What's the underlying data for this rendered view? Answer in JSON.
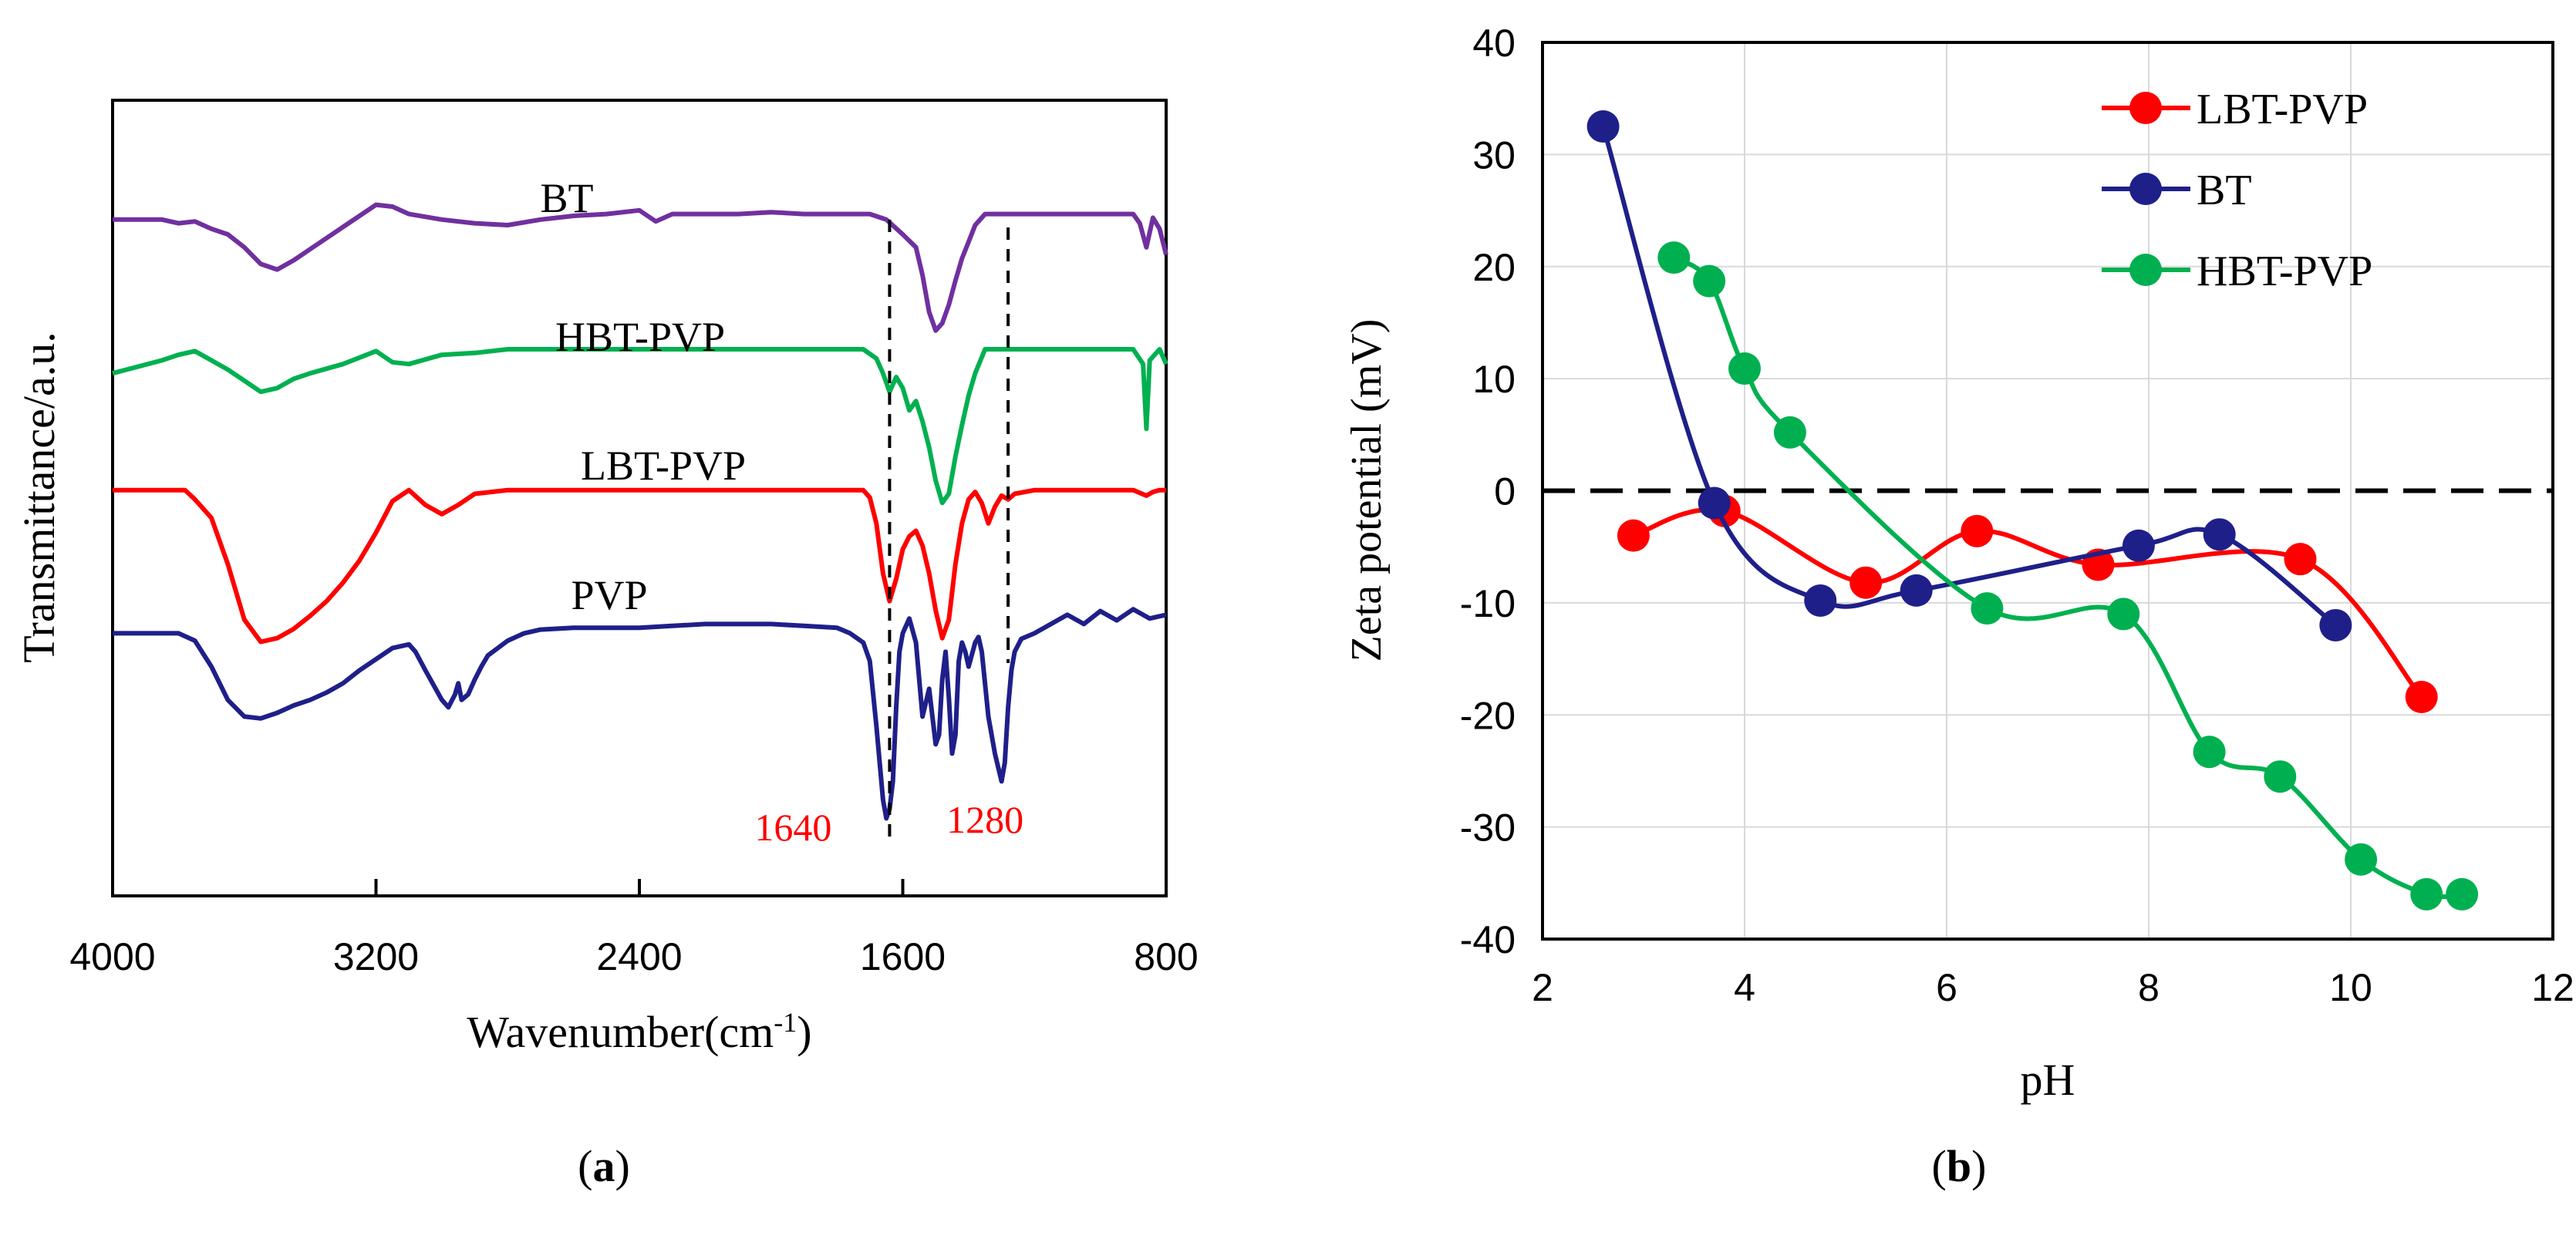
{
  "chart_data": [
    {
      "id": "a",
      "type": "line",
      "panel_label": "a",
      "xlabel": "Wavenumber(cm",
      "xlabel_sup": "-1",
      "xlabel_suffix": ")",
      "ylabel": "Transmittance/a.u.",
      "xlim": [
        4000,
        800
      ],
      "x_ticks": [
        4000,
        3200,
        2400,
        1600,
        800
      ],
      "x_tick_labels": [
        "4000",
        "3200",
        "2400",
        "1600",
        "800"
      ],
      "y_ticks": [],
      "series": [
        {
          "name": "BT",
          "color": "#7030a0",
          "offset": 0.15,
          "x": [
            4000,
            3850,
            3800,
            3750,
            3700,
            3650,
            3600,
            3550,
            3500,
            3450,
            3400,
            3300,
            3200,
            3150,
            3100,
            3000,
            2900,
            2800,
            2700,
            2600,
            2500,
            2400,
            2350,
            2300,
            2200,
            2100,
            2000,
            1900,
            1800,
            1700,
            1650,
            1600,
            1560,
            1540,
            1520,
            1500,
            1480,
            1460,
            1440,
            1420,
            1400,
            1380,
            1350,
            1300,
            1250,
            1200,
            1100,
            1000,
            950,
            900,
            880,
            860,
            840,
            820,
            800
          ],
          "y": [
            0,
            0,
            0.2,
            0.1,
            0.5,
            0.8,
            1.5,
            2.4,
            2.7,
            2.2,
            1.6,
            0.4,
            -0.8,
            -0.7,
            -0.3,
            0,
            0.2,
            0.3,
            0,
            -0.2,
            -0.3,
            -0.5,
            0.1,
            -0.3,
            -0.3,
            -0.3,
            -0.4,
            -0.3,
            -0.3,
            -0.3,
            0,
            0.8,
            1.5,
            3.0,
            5.0,
            6.0,
            5.6,
            4.6,
            3.3,
            2.1,
            1.2,
            0.3,
            -0.3,
            -0.3,
            -0.3,
            -0.3,
            -0.3,
            -0.3,
            -0.3,
            -0.3,
            0.2,
            1.5,
            -0.1,
            0.5,
            1.9
          ]
        },
        {
          "name": "HBT-PVP",
          "color": "#00b050",
          "offset": 0.32,
          "x": [
            4000,
            3850,
            3800,
            3750,
            3700,
            3650,
            3600,
            3550,
            3500,
            3450,
            3400,
            3300,
            3200,
            3150,
            3100,
            3000,
            2900,
            2800,
            2700,
            2600,
            2500,
            2400,
            2300,
            2200,
            2100,
            2000,
            1900,
            1800,
            1720,
            1680,
            1660,
            1640,
            1620,
            1600,
            1580,
            1560,
            1540,
            1520,
            1500,
            1480,
            1460,
            1440,
            1420,
            1400,
            1380,
            1350,
            1300,
            1250,
            1200,
            1100,
            1000,
            950,
            900,
            870,
            860,
            850,
            820,
            800
          ],
          "y": [
            1.0,
            0.3,
            0,
            -0.2,
            0.3,
            0.8,
            1.4,
            2.0,
            1.8,
            1.3,
            1.0,
            0.5,
            -0.2,
            0.4,
            0.5,
            0,
            -0.1,
            -0.3,
            -0.3,
            -0.3,
            -0.3,
            -0.3,
            -0.3,
            -0.3,
            -0.3,
            -0.3,
            -0.3,
            -0.3,
            -0.3,
            0.2,
            1.0,
            2.0,
            1.2,
            1.8,
            3.0,
            2.5,
            3.6,
            5.0,
            6.8,
            8.0,
            7.5,
            5.5,
            3.8,
            2.2,
            1.0,
            -0.3,
            -0.3,
            -0.3,
            -0.3,
            -0.3,
            -0.3,
            -0.3,
            -0.3,
            0.5,
            4.0,
            0.3,
            -0.3,
            0.5
          ]
        },
        {
          "name": "LBT-PVP",
          "color": "#ff0000",
          "offset": 0.49,
          "x": [
            4000,
            3900,
            3800,
            3780,
            3750,
            3700,
            3650,
            3600,
            3550,
            3500,
            3450,
            3400,
            3350,
            3300,
            3250,
            3200,
            3150,
            3100,
            3050,
            3000,
            2950,
            2900,
            2800,
            2700,
            2600,
            2500,
            2400,
            2300,
            2200,
            2100,
            2000,
            1900,
            1800,
            1720,
            1700,
            1680,
            1660,
            1640,
            1620,
            1600,
            1580,
            1560,
            1540,
            1520,
            1500,
            1480,
            1460,
            1440,
            1420,
            1400,
            1380,
            1360,
            1340,
            1320,
            1300,
            1280,
            1260,
            1200,
            1100,
            1000,
            950,
            900,
            860,
            840,
            820,
            800
          ],
          "y": [
            0,
            0,
            0,
            0,
            0.5,
            1.5,
            4.0,
            7.0,
            8.2,
            8.0,
            7.5,
            6.8,
            6.0,
            5.0,
            3.8,
            2.3,
            0.6,
            0,
            0.8,
            1.3,
            0.8,
            0.2,
            0,
            0,
            0,
            0,
            0,
            0,
            0,
            0,
            0,
            0,
            0,
            0,
            0.4,
            1.8,
            4.5,
            6.0,
            4.8,
            3.2,
            2.5,
            2.2,
            3.0,
            4.5,
            6.5,
            8.0,
            7.0,
            4.0,
            1.8,
            0.5,
            0.1,
            0.7,
            1.8,
            0.9,
            0.3,
            0.5,
            0.2,
            0,
            0,
            0,
            0,
            0,
            0.3,
            0.1,
            0,
            0
          ]
        },
        {
          "name": "PVP",
          "color": "#1f1f8a",
          "offset": 0.67,
          "x": [
            4000,
            3900,
            3800,
            3750,
            3700,
            3650,
            3600,
            3550,
            3500,
            3450,
            3400,
            3350,
            3300,
            3250,
            3200,
            3150,
            3100,
            3080,
            3050,
            3000,
            2980,
            2960,
            2950,
            2940,
            2920,
            2900,
            2880,
            2860,
            2830,
            2800,
            2750,
            2700,
            2600,
            2500,
            2400,
            2300,
            2200,
            2100,
            2000,
            1900,
            1800,
            1760,
            1720,
            1700,
            1680,
            1660,
            1650,
            1640,
            1630,
            1620,
            1610,
            1600,
            1580,
            1560,
            1540,
            1520,
            1500,
            1490,
            1480,
            1470,
            1460,
            1450,
            1440,
            1430,
            1420,
            1410,
            1400,
            1380,
            1370,
            1360,
            1340,
            1320,
            1300,
            1290,
            1280,
            1270,
            1260,
            1240,
            1200,
            1150,
            1100,
            1050,
            1000,
            950,
            900,
            850,
            800
          ],
          "y": [
            0,
            0,
            0,
            0.4,
            1.8,
            3.6,
            4.5,
            4.6,
            4.3,
            3.9,
            3.6,
            3.2,
            2.7,
            2.0,
            1.4,
            0.8,
            0.6,
            1.0,
            2.0,
            3.6,
            4.0,
            3.3,
            2.7,
            3.6,
            3.3,
            2.5,
            1.8,
            1.2,
            0.8,
            0.4,
            0,
            -0.2,
            -0.3,
            -0.3,
            -0.3,
            -0.4,
            -0.5,
            -0.5,
            -0.5,
            -0.4,
            -0.3,
            0,
            0.5,
            1.5,
            5.0,
            9.0,
            10.0,
            9.5,
            8.0,
            4.0,
            1.0,
            0,
            -0.8,
            0.5,
            4.5,
            3.0,
            6.0,
            5.5,
            2.5,
            1.0,
            3.5,
            6.5,
            5.5,
            1.5,
            0.5,
            1.0,
            1.8,
            0.5,
            0.2,
            1.0,
            4.5,
            6.5,
            8.0,
            7.0,
            4.0,
            2.0,
            1.0,
            0.3,
            0,
            -0.5,
            -1.0,
            -0.5,
            -1.2,
            -0.7,
            -1.3,
            -0.8,
            -1.0
          ]
        }
      ],
      "annotations": [
        {
          "text": "1640",
          "x": 1640,
          "color": "#ff0000"
        },
        {
          "text": "1280",
          "x": 1280,
          "color": "#ff0000"
        }
      ]
    },
    {
      "id": "b",
      "type": "line",
      "panel_label": "b",
      "xlabel": "pH",
      "ylabel": "Zeta potential (mV)",
      "xlim": [
        2,
        12
      ],
      "ylim": [
        -40,
        40
      ],
      "x_ticks": [
        2,
        4,
        6,
        8,
        10,
        12
      ],
      "y_ticks": [
        -40,
        -30,
        -20,
        -10,
        0,
        10,
        20,
        30,
        40
      ],
      "x_tick_labels": [
        "2",
        "4",
        "6",
        "8",
        "10",
        "12"
      ],
      "y_tick_labels": [
        "-40",
        "-30",
        "-20",
        "-10",
        "0",
        "10",
        "20",
        "30",
        "40"
      ],
      "grid": true,
      "zero_line": "dashed",
      "legend_position": "top-right",
      "series": [
        {
          "name": "LBT-PVP",
          "color": "#ff0000",
          "x": [
            2.9,
            3.8,
            5.2,
            6.3,
            7.5,
            9.5,
            10.7
          ],
          "y": [
            -4.0,
            -1.8,
            -8.2,
            -3.6,
            -6.6,
            -6.1,
            -18.4
          ]
        },
        {
          "name": "BT",
          "color": "#1f1f8a",
          "x": [
            2.6,
            3.7,
            4.75,
            5.7,
            7.9,
            8.7,
            9.85
          ],
          "y": [
            32.5,
            -1.1,
            -9.8,
            -8.9,
            -4.9,
            -3.9,
            -12.0
          ]
        },
        {
          "name": "HBT-PVP",
          "color": "#00b050",
          "x": [
            3.3,
            3.65,
            4.0,
            4.45,
            6.4,
            7.75,
            8.6,
            9.3,
            10.1,
            10.75,
            11.1
          ],
          "y": [
            20.8,
            18.7,
            10.9,
            5.2,
            -10.5,
            -11.0,
            -23.3,
            -25.5,
            -32.9,
            -36.0,
            -36.0
          ]
        }
      ]
    }
  ]
}
